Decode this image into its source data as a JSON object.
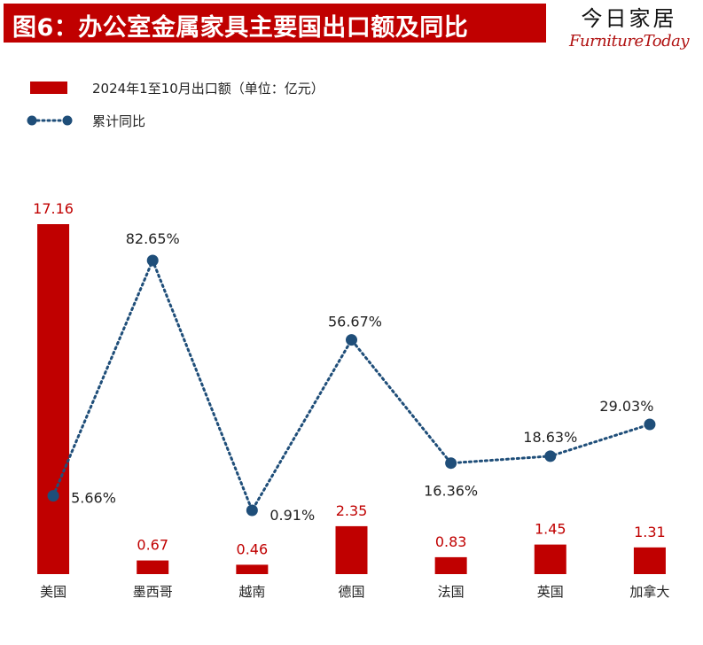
{
  "header": {
    "title": "图6：办公室金属家具主要国出口额及同比",
    "brand_cn": "今日家居",
    "brand_en": "FurnitureToday"
  },
  "legend": {
    "bar_label": "2024年1至10月出口额（单位：亿元）",
    "line_label": "累计同比"
  },
  "colors": {
    "bar": "#c00000",
    "line": "#1f4e79",
    "bar_label": "#c00000",
    "line_label": "#222222"
  },
  "chart_data": {
    "type": "bar+line",
    "categories": [
      "美国",
      "墨西哥",
      "越南",
      "德国",
      "法国",
      "英国",
      "加拿大"
    ],
    "series": [
      {
        "name": "2024年1至10月出口额（单位：亿元）",
        "type": "bar",
        "values": [
          17.16,
          0.67,
          0.46,
          2.35,
          0.83,
          1.45,
          1.31
        ],
        "labels": [
          "17.16",
          "0.67",
          "0.46",
          "2.35",
          "0.83",
          "1.45",
          "1.31"
        ]
      },
      {
        "name": "累计同比",
        "type": "line",
        "values": [
          5.66,
          82.65,
          0.91,
          56.67,
          16.36,
          18.63,
          29.03
        ],
        "labels": [
          "5.66%",
          "82.65%",
          "0.91%",
          "56.67%",
          "16.36%",
          "18.63%",
          "29.03%"
        ]
      }
    ],
    "bar_ylim": [
      0,
      17.16
    ],
    "line_ylim": [
      0,
      90
    ]
  }
}
